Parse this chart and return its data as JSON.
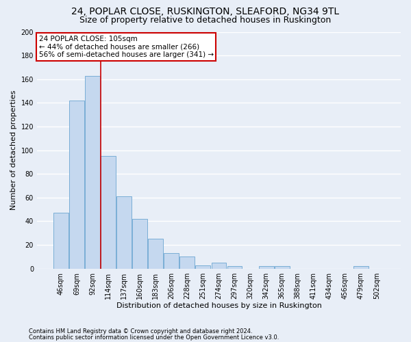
{
  "title": "24, POPLAR CLOSE, RUSKINGTON, SLEAFORD, NG34 9TL",
  "subtitle": "Size of property relative to detached houses in Ruskington",
  "xlabel": "Distribution of detached houses by size in Ruskington",
  "ylabel": "Number of detached properties",
  "categories": [
    "46sqm",
    "69sqm",
    "92sqm",
    "114sqm",
    "137sqm",
    "160sqm",
    "183sqm",
    "206sqm",
    "228sqm",
    "251sqm",
    "274sqm",
    "297sqm",
    "320sqm",
    "342sqm",
    "365sqm",
    "388sqm",
    "411sqm",
    "434sqm",
    "456sqm",
    "479sqm",
    "502sqm"
  ],
  "values": [
    47,
    142,
    163,
    95,
    61,
    42,
    25,
    13,
    10,
    3,
    5,
    2,
    0,
    2,
    2,
    0,
    0,
    0,
    0,
    2,
    0
  ],
  "bar_color": "#c5d8ef",
  "bar_edge_color": "#7aaed6",
  "red_line_x": 2.5,
  "annotation_text": "24 POPLAR CLOSE: 105sqm\n← 44% of detached houses are smaller (266)\n56% of semi-detached houses are larger (341) →",
  "annotation_box_color": "#ffffff",
  "annotation_box_edge": "#cc0000",
  "red_line_color": "#cc0000",
  "ylim": [
    0,
    200
  ],
  "yticks": [
    0,
    20,
    40,
    60,
    80,
    100,
    120,
    140,
    160,
    180,
    200
  ],
  "footer1": "Contains HM Land Registry data © Crown copyright and database right 2024.",
  "footer2": "Contains public sector information licensed under the Open Government Licence v3.0.",
  "background_color": "#e8eef7",
  "plot_bg_color": "#e8eef7",
  "grid_color": "#ffffff",
  "title_fontsize": 10,
  "subtitle_fontsize": 9,
  "label_fontsize": 8,
  "tick_fontsize": 7,
  "annot_fontsize": 7.5,
  "footer_fontsize": 6
}
